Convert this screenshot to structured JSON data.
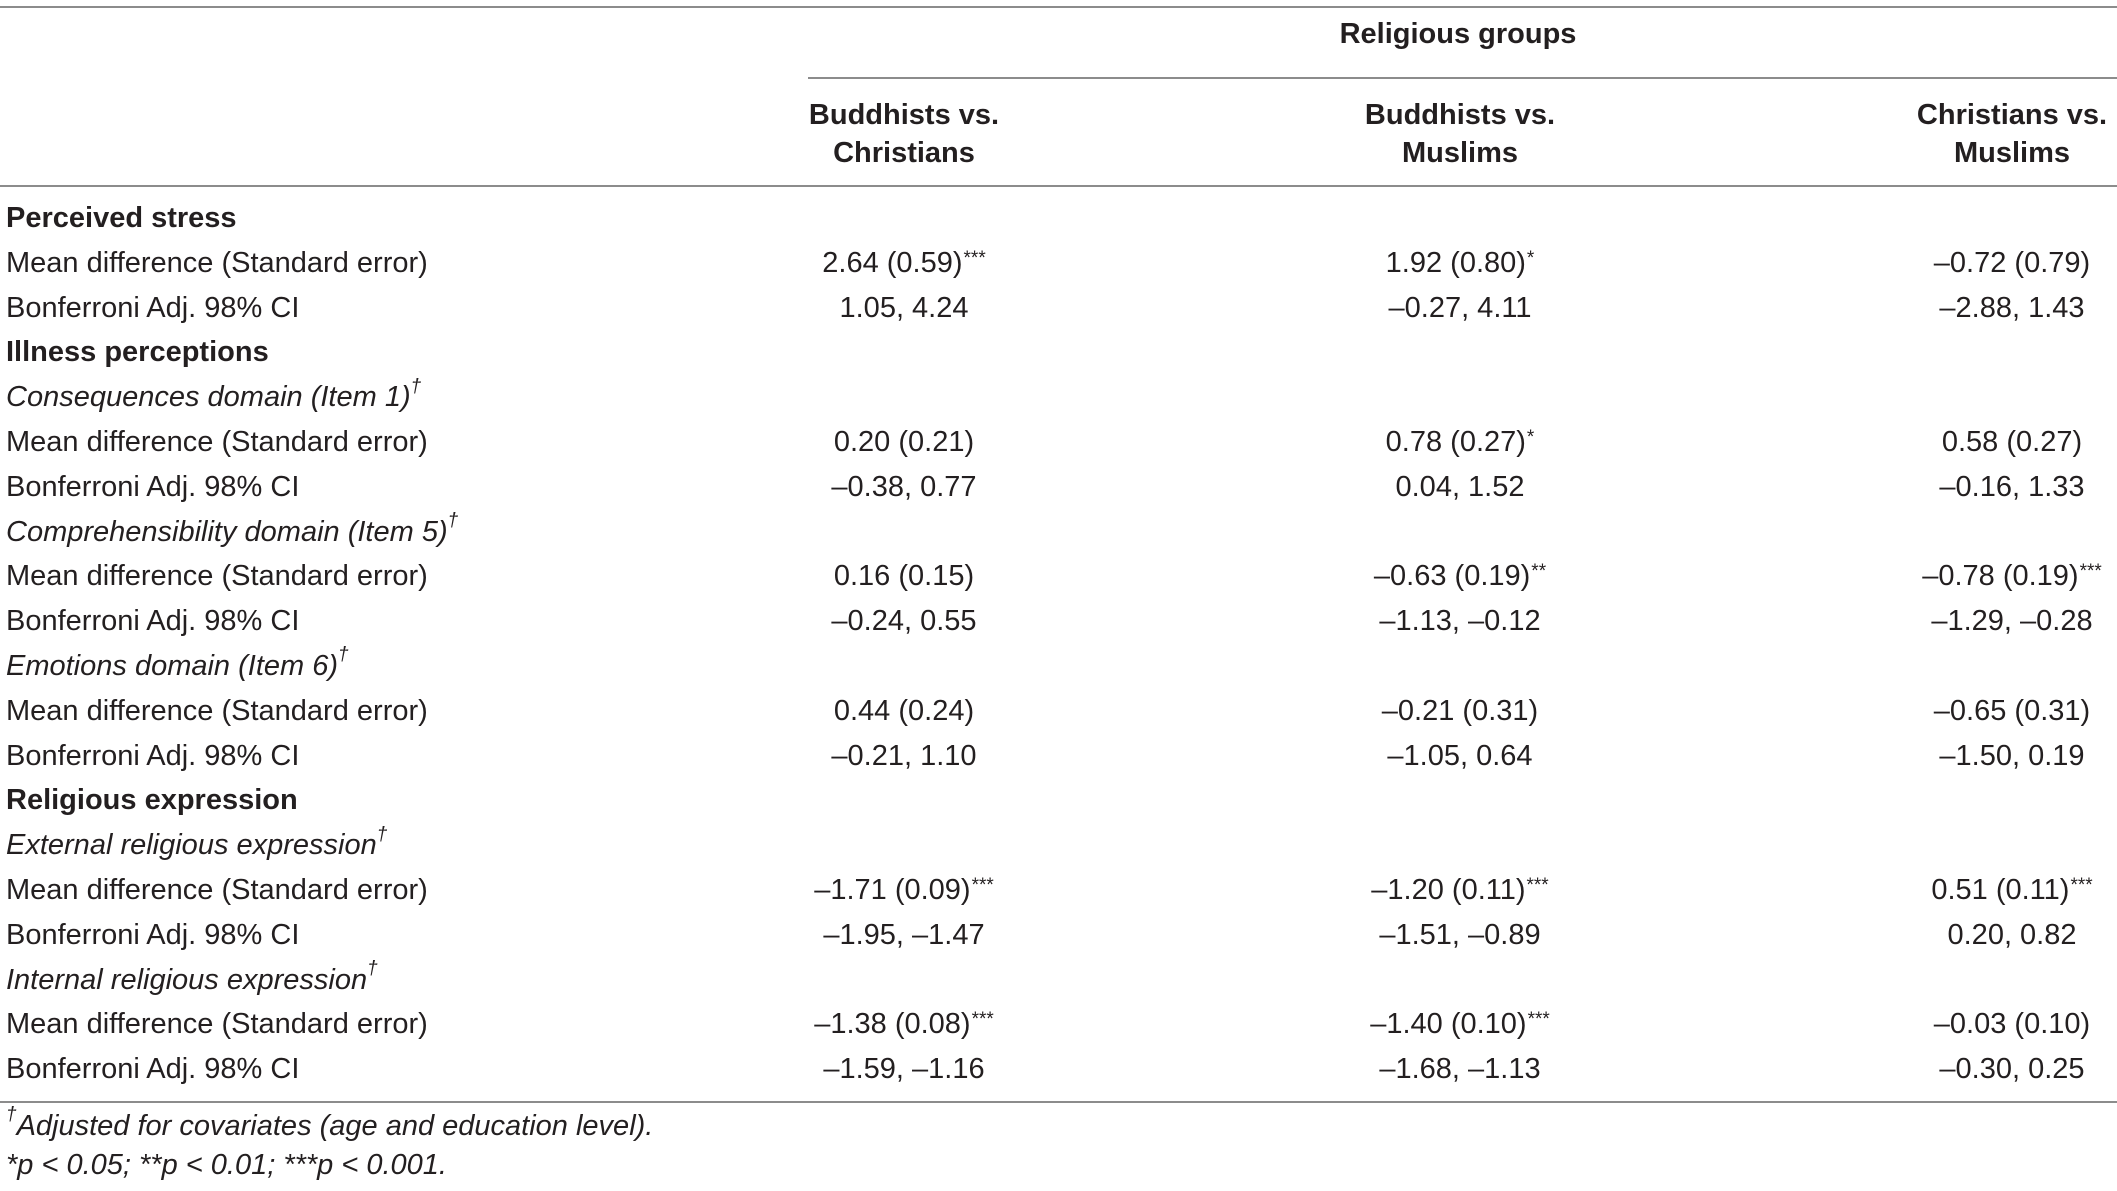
{
  "header": {
    "group_label": "Religious groups",
    "columns": [
      [
        "Buddhists vs.",
        "Christians"
      ],
      [
        "Buddhists vs.",
        "Muslims"
      ],
      [
        "Christians vs.",
        "Muslims"
      ]
    ]
  },
  "rows": [
    {
      "type": "section",
      "label": "Perceived stress"
    },
    {
      "type": "data",
      "label": "Mean difference (Standard error)",
      "values": [
        "2.64 (0.59)",
        "1.92 (0.80)",
        "–0.72 (0.79)"
      ],
      "sig": [
        "***",
        "*",
        ""
      ]
    },
    {
      "type": "data",
      "label": "Bonferroni Adj. 98% CI",
      "values": [
        "1.05, 4.24",
        "–0.27, 4.11",
        "–2.88, 1.43"
      ],
      "sig": [
        "",
        "",
        ""
      ]
    },
    {
      "type": "section",
      "label": "Illness perceptions"
    },
    {
      "type": "subsection",
      "label": "Consequences domain (Item 1)",
      "mark": "†"
    },
    {
      "type": "data",
      "label": "Mean difference (Standard error)",
      "values": [
        "0.20 (0.21)",
        "0.78 (0.27)",
        "0.58 (0.27)"
      ],
      "sig": [
        "",
        "*",
        ""
      ]
    },
    {
      "type": "data",
      "label": "Bonferroni Adj. 98% CI",
      "values": [
        "–0.38, 0.77",
        "0.04, 1.52",
        "–0.16, 1.33"
      ],
      "sig": [
        "",
        "",
        ""
      ]
    },
    {
      "type": "subsection",
      "label": "Comprehensibility domain (Item 5)",
      "mark": "†"
    },
    {
      "type": "data",
      "label": "Mean difference (Standard error)",
      "values": [
        "0.16 (0.15)",
        "–0.63 (0.19)",
        "–0.78 (0.19)"
      ],
      "sig": [
        "",
        "**",
        "***"
      ]
    },
    {
      "type": "data",
      "label": "Bonferroni Adj. 98% CI",
      "values": [
        "–0.24, 0.55",
        "–1.13, –0.12",
        "–1.29, –0.28"
      ],
      "sig": [
        "",
        "",
        ""
      ]
    },
    {
      "type": "subsection",
      "label": "Emotions domain (Item 6)",
      "mark": "†"
    },
    {
      "type": "data",
      "label": "Mean difference (Standard error)",
      "values": [
        "0.44 (0.24)",
        "–0.21 (0.31)",
        "–0.65 (0.31)"
      ],
      "sig": [
        "",
        "",
        ""
      ]
    },
    {
      "type": "data",
      "label": "Bonferroni Adj. 98% CI",
      "values": [
        "–0.21, 1.10",
        "–1.05, 0.64",
        "–1.50, 0.19"
      ],
      "sig": [
        "",
        "",
        ""
      ]
    },
    {
      "type": "section",
      "label": "Religious expression"
    },
    {
      "type": "subsection",
      "label": "External religious expression",
      "mark": "†"
    },
    {
      "type": "data",
      "label": "Mean difference (Standard error)",
      "values": [
        "–1.71 (0.09)",
        "–1.20 (0.11)",
        "0.51 (0.11)"
      ],
      "sig": [
        "***",
        "***",
        "***"
      ]
    },
    {
      "type": "data",
      "label": "Bonferroni Adj. 98% CI",
      "values": [
        "–1.95, –1.47",
        "–1.51, –0.89",
        "0.20, 0.82"
      ],
      "sig": [
        "",
        "",
        ""
      ]
    },
    {
      "type": "subsection",
      "label": "Internal religious expression",
      "mark": "†"
    },
    {
      "type": "data",
      "label": "Mean difference (Standard error)",
      "values": [
        "–1.38 (0.08)",
        "–1.40 (0.10)",
        "–0.03 (0.10)"
      ],
      "sig": [
        "***",
        "***",
        ""
      ]
    },
    {
      "type": "data",
      "label": "Bonferroni Adj. 98% CI",
      "values": [
        "–1.59, –1.16",
        "–1.68, –1.13",
        "–0.30, 0.25"
      ],
      "sig": [
        "",
        "",
        ""
      ]
    }
  ],
  "footnotes": {
    "adjusted_mark": "†",
    "adjusted_text": "Adjusted for covariates (age and education level).",
    "pvalues": "*p < 0.05; **p < 0.01; ***p < 0.001."
  }
}
